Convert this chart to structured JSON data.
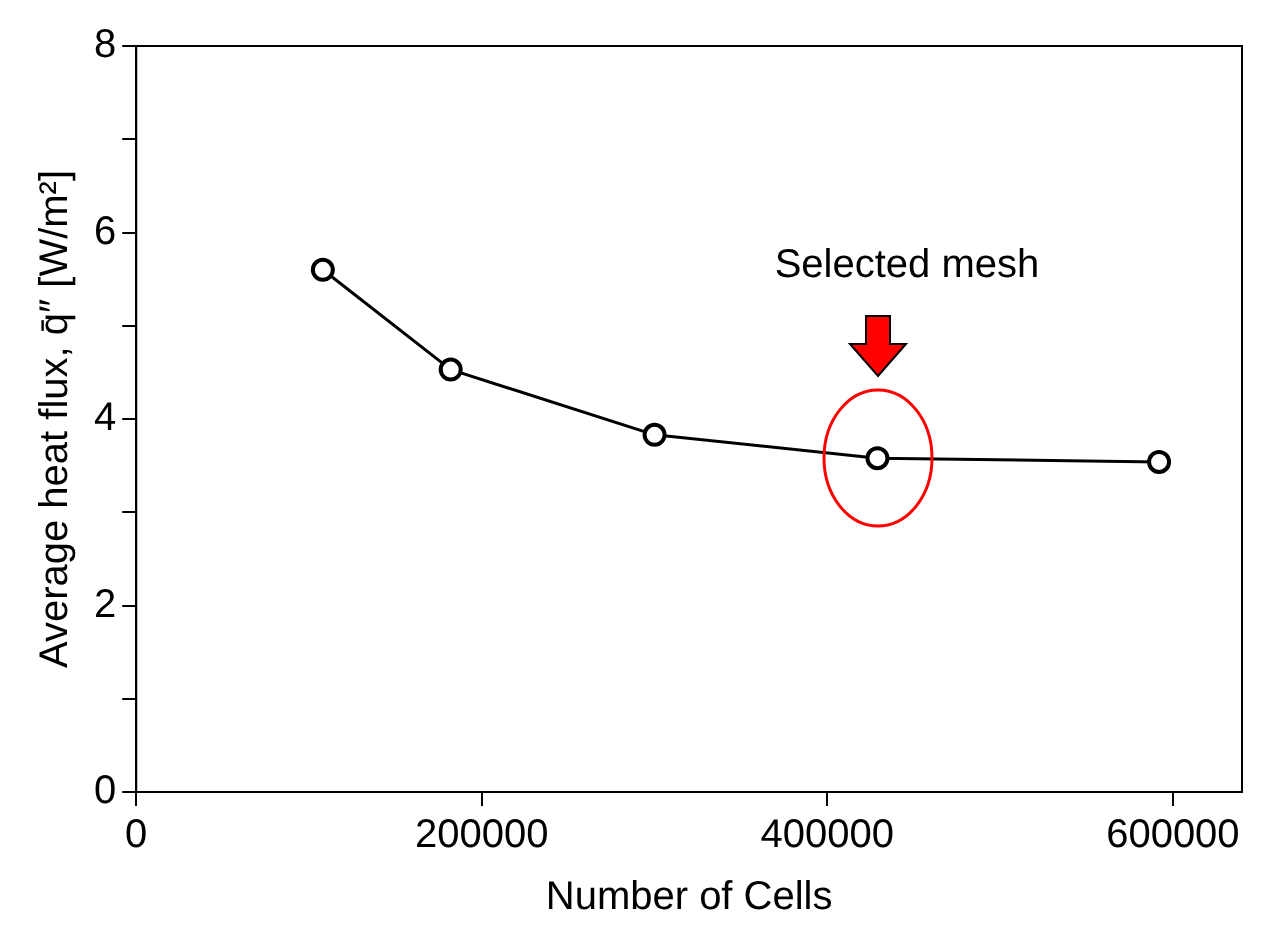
{
  "chart_data": {
    "type": "line",
    "xlabel": "Number of Cells",
    "ylabel": "Average heat flux, q̄″ [W/m²]",
    "x": [
      108000,
      182000,
      300000,
      429000,
      592000
    ],
    "series": [
      {
        "color": "#000000",
        "values": [
          5.6,
          4.53,
          3.83,
          3.58,
          3.54
        ]
      }
    ],
    "xlim": [
      0,
      640000
    ],
    "xticks": [
      0,
      200000,
      400000,
      600000
    ],
    "ylim": [
      0,
      8
    ],
    "yticks": [
      0,
      {
        "value": 1,
        "label": null
      },
      2,
      {
        "value": 3,
        "label": null
      },
      4,
      {
        "value": 5,
        "label": null
      },
      6,
      {
        "value": 7,
        "label": null
      },
      8
    ],
    "marker": "circle",
    "line_style": "solid",
    "grid": false,
    "legend": false,
    "annotations": [
      "Selected mesh"
    ]
  }
}
